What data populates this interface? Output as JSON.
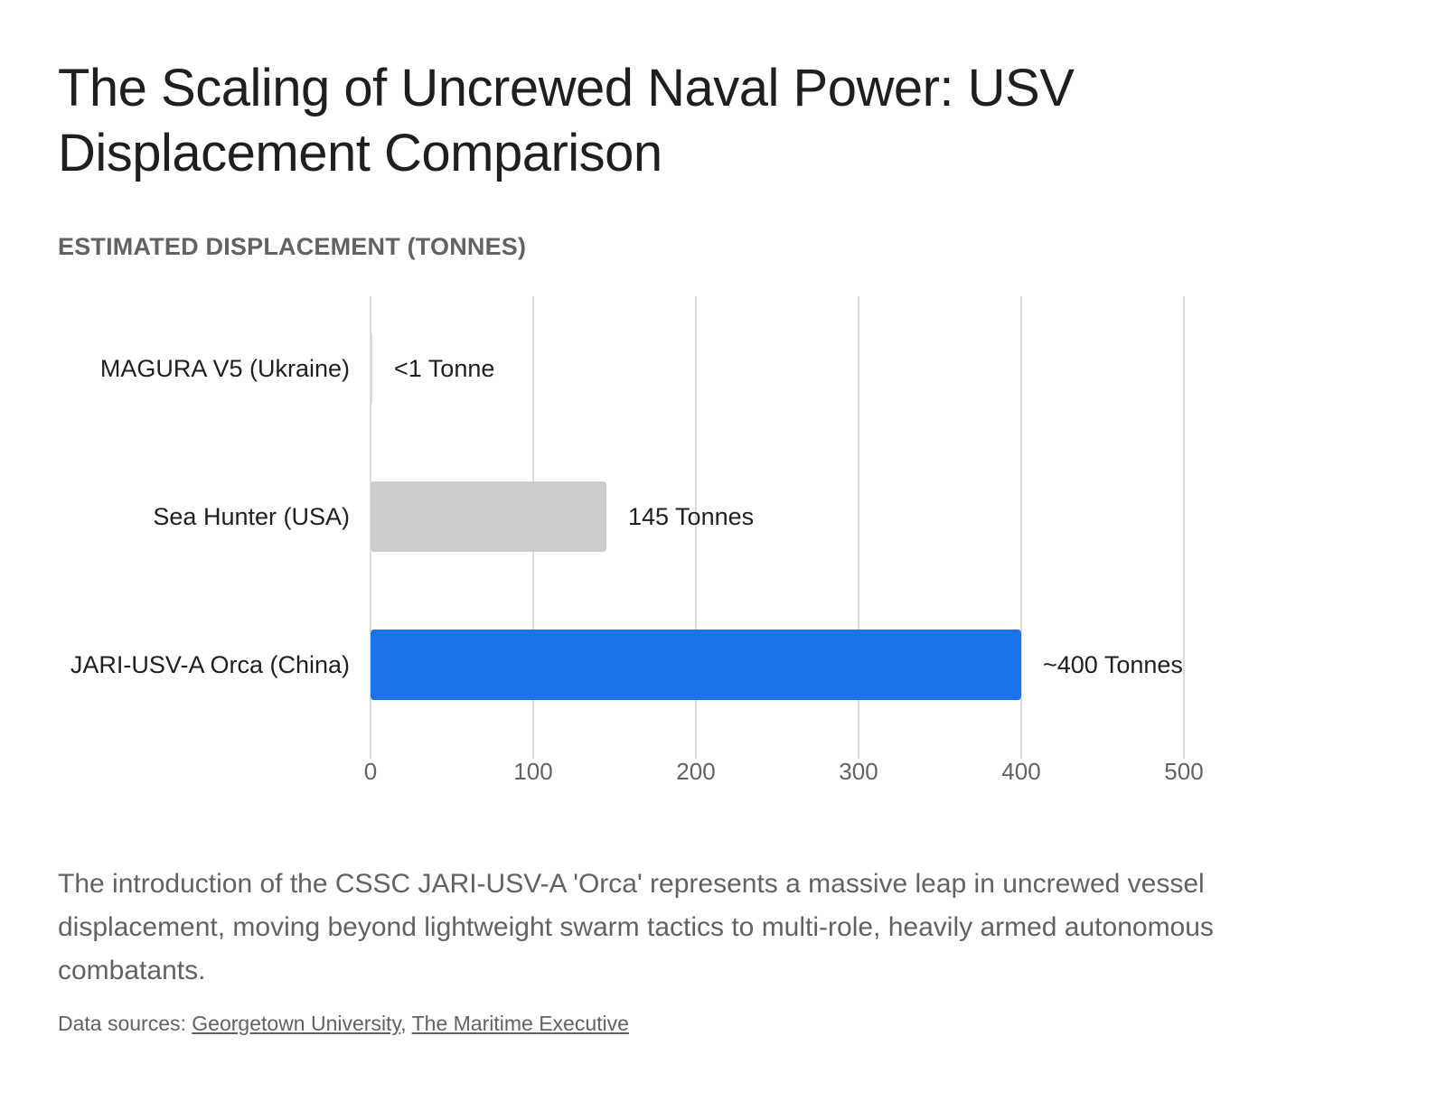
{
  "header": {
    "title": "The Scaling of Uncrewed Naval Power: USV Displacement Comparison",
    "subtitle": "ESTIMATED DISPLACEMENT (TONNES)"
  },
  "chart_data": {
    "type": "bar",
    "orientation": "horizontal",
    "categories": [
      "MAGURA V5 (Ukraine)",
      "Sea Hunter (USA)",
      "JARI-USV-A Orca (China)"
    ],
    "values": [
      1,
      145,
      400
    ],
    "data_labels": [
      "<1 Tonne",
      "145 Tonnes",
      "~400 Tonnes"
    ],
    "bar_colors": [
      "#d9d9d9",
      "#cccccc",
      "#1a73e8"
    ],
    "xlim": [
      0,
      500
    ],
    "xticks": [
      0,
      100,
      200,
      300,
      400,
      500
    ],
    "grid": true,
    "legend": "none"
  },
  "footer": {
    "caption": "The introduction of the CSSC JARI-USV-A 'Orca' represents a massive leap in uncrewed vessel displacement, moving beyond lightweight swarm tactics to multi-role, heavily armed autonomous combatants.",
    "sources_label": "Data sources:",
    "sources": [
      "Georgetown University",
      "The Maritime Executive"
    ]
  }
}
